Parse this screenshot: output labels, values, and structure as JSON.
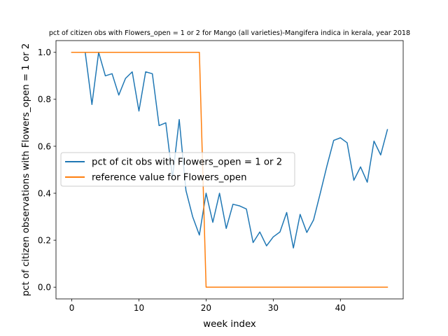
{
  "chart_data": {
    "type": "line",
    "title": "pct of citizen obs with Flowers_open = 1 or 2 for Mango (all varieties)-Mangifera indica in kerala, year 2018",
    "xlabel": "week index",
    "ylabel": "pct of citizen observations with Flowers_open = 1 or 2",
    "xlim": [
      -2.35,
      49.35
    ],
    "ylim": [
      -0.05,
      1.05
    ],
    "x_ticks": [
      0,
      10,
      20,
      30,
      40
    ],
    "x_tick_labels": [
      "0",
      "10",
      "20",
      "30",
      "40"
    ],
    "y_ticks": [
      0.0,
      0.2,
      0.4,
      0.6,
      0.8,
      1.0
    ],
    "y_tick_labels": [
      "0.0",
      "0.2",
      "0.4",
      "0.6",
      "0.8",
      "1.0"
    ],
    "grid": false,
    "legend_position": "center-left",
    "series": [
      {
        "name": "pct of cit obs with Flowers_open = 1 or 2",
        "color": "#1f77b4",
        "x": [
          0,
          1,
          2,
          3,
          4,
          5,
          6,
          7,
          8,
          9,
          10,
          11,
          12,
          13,
          14,
          15,
          16,
          17,
          18,
          19,
          20,
          21,
          22,
          23,
          24,
          25,
          26,
          27,
          28,
          29,
          30,
          31,
          32,
          33,
          34,
          35,
          36,
          37,
          38,
          39,
          40,
          41,
          42,
          43,
          44,
          45,
          46,
          47
        ],
        "values": [
          1.0,
          1.0,
          1.0,
          0.778,
          1.0,
          0.9,
          0.909,
          0.818,
          0.889,
          0.917,
          0.75,
          0.917,
          0.909,
          0.688,
          0.7,
          0.467,
          0.714,
          0.412,
          0.3,
          0.222,
          0.4,
          0.276,
          0.4,
          0.25,
          0.353,
          0.346,
          0.333,
          0.19,
          0.235,
          0.176,
          0.214,
          0.235,
          0.318,
          0.167,
          0.31,
          0.233,
          0.286,
          0.4,
          0.517,
          0.625,
          0.636,
          0.615,
          0.455,
          0.512,
          0.447,
          0.622,
          0.563,
          0.671
        ]
      },
      {
        "name": "reference value for Flowers_open",
        "color": "#ff7f0e",
        "x": [
          0,
          1,
          2,
          3,
          4,
          5,
          6,
          7,
          8,
          9,
          10,
          11,
          12,
          13,
          14,
          15,
          16,
          17,
          18,
          19,
          20,
          21,
          22,
          23,
          24,
          25,
          26,
          27,
          28,
          29,
          30,
          31,
          32,
          33,
          34,
          35,
          36,
          37,
          38,
          39,
          40,
          41,
          42,
          43,
          44,
          45,
          46,
          47
        ],
        "values": [
          1,
          1,
          1,
          1,
          1,
          1,
          1,
          1,
          1,
          1,
          1,
          1,
          1,
          1,
          1,
          1,
          1,
          1,
          1,
          1,
          0,
          0,
          0,
          0,
          0,
          0,
          0,
          0,
          0,
          0,
          0,
          0,
          0,
          0,
          0,
          0,
          0,
          0,
          0,
          0,
          0,
          0,
          0,
          0,
          0,
          0,
          0,
          0
        ]
      }
    ]
  }
}
